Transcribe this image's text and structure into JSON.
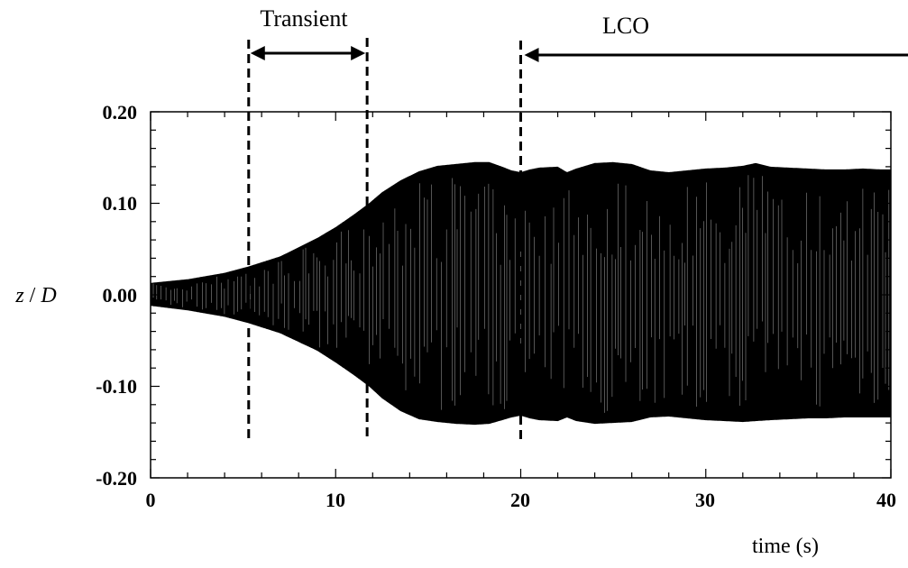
{
  "chart_data": {
    "type": "line",
    "title": "",
    "xlabel": "time (s)",
    "ylabel_var": "z",
    "ylabel_sep": " / ",
    "ylabel_den": "D",
    "xlim": [
      0,
      40
    ],
    "ylim": [
      -0.2,
      0.2
    ],
    "grid": false,
    "x_ticks": [
      {
        "value": 0,
        "label": "0"
      },
      {
        "value": 10,
        "label": "10"
      },
      {
        "value": 20,
        "label": "20"
      },
      {
        "value": 30,
        "label": "30"
      },
      {
        "value": 40,
        "label": "40"
      }
    ],
    "y_ticks": [
      {
        "value": -0.2,
        "label": "-0.20"
      },
      {
        "value": -0.1,
        "label": "-0.10"
      },
      {
        "value": 0.0,
        "label": "0.00"
      },
      {
        "value": 0.1,
        "label": "0.10"
      },
      {
        "value": 0.2,
        "label": "0.20"
      }
    ],
    "envelope": {
      "t": [
        0,
        2,
        4,
        5.3,
        7,
        9,
        10,
        11,
        11.8,
        12.5,
        13.5,
        14.5,
        15.5,
        16.5,
        17.5,
        18.3,
        19,
        19.5,
        20,
        20.5,
        21,
        22,
        22.5,
        23,
        24,
        25,
        26,
        27,
        28,
        29,
        30,
        31,
        32,
        32.7,
        33.5,
        34.5,
        35.5,
        36.5,
        37.5,
        38.5,
        39.5,
        40
      ],
      "upper": [
        0.013,
        0.017,
        0.024,
        0.031,
        0.042,
        0.062,
        0.074,
        0.088,
        0.1,
        0.112,
        0.125,
        0.135,
        0.141,
        0.143,
        0.145,
        0.145,
        0.14,
        0.136,
        0.134,
        0.137,
        0.139,
        0.14,
        0.134,
        0.138,
        0.144,
        0.145,
        0.143,
        0.136,
        0.134,
        0.136,
        0.138,
        0.139,
        0.141,
        0.144,
        0.14,
        0.139,
        0.138,
        0.137,
        0.137,
        0.138,
        0.137,
        0.137
      ],
      "lower": [
        -0.012,
        -0.017,
        -0.024,
        -0.031,
        -0.042,
        -0.061,
        -0.074,
        -0.088,
        -0.1,
        -0.113,
        -0.127,
        -0.136,
        -0.139,
        -0.141,
        -0.142,
        -0.141,
        -0.137,
        -0.134,
        -0.132,
        -0.135,
        -0.137,
        -0.138,
        -0.134,
        -0.138,
        -0.141,
        -0.14,
        -0.139,
        -0.134,
        -0.133,
        -0.135,
        -0.137,
        -0.138,
        -0.139,
        -0.138,
        -0.137,
        -0.136,
        -0.135,
        -0.135,
        -0.134,
        -0.134,
        -0.134,
        -0.134
      ]
    },
    "markers": [
      {
        "name": "transient-start",
        "t": 5.3
      },
      {
        "name": "transient-end",
        "t": 11.7
      },
      {
        "name": "lco-start",
        "t": 20
      }
    ],
    "annotations": {
      "transient": {
        "label": "Transient",
        "t_start": 5.3,
        "t_end": 11.7
      },
      "lco": {
        "label": "LCO",
        "t_start": 20,
        "t_end": 40
      }
    }
  }
}
